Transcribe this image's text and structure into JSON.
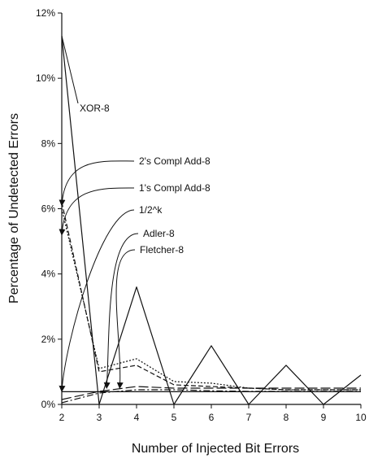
{
  "chart_data": {
    "type": "line",
    "title": "",
    "xlabel": "Number of Injected Bit Errors",
    "ylabel": "Percentage of Undetected Errors",
    "x": [
      2,
      3,
      4,
      5,
      6,
      7,
      8,
      9,
      10
    ],
    "xlim": [
      2,
      10
    ],
    "ylim": [
      0,
      12
    ],
    "y_ticks": [
      0,
      2,
      4,
      6,
      8,
      10,
      12
    ],
    "y_tick_labels": [
      "0%",
      "2%",
      "4%",
      "6%",
      "8%",
      "10%",
      "12%"
    ],
    "x_tick_labels": [
      "2",
      "3",
      "4",
      "5",
      "6",
      "7",
      "8",
      "9",
      "10"
    ],
    "grid": false,
    "legend": "none",
    "series": [
      {
        "name": "XOR-8",
        "style": "solid",
        "color": "#111111",
        "values": [
          11.3,
          0.0,
          3.6,
          0.0,
          1.8,
          0.0,
          1.2,
          0.0,
          0.9
        ]
      },
      {
        "name": "2's Compl Add-8",
        "style": "dashed",
        "color": "#111111",
        "values": [
          6.2,
          1.0,
          1.2,
          0.6,
          0.55,
          0.5,
          0.45,
          0.45,
          0.45
        ]
      },
      {
        "name": "1's Compl Add-8",
        "style": "dotted",
        "color": "#111111",
        "values": [
          6.0,
          1.1,
          1.4,
          0.7,
          0.65,
          0.5,
          0.45,
          0.45,
          0.45
        ]
      },
      {
        "name": "1/2^k",
        "style": "solid",
        "color": "#111111",
        "values": [
          0.39,
          0.39,
          0.39,
          0.39,
          0.39,
          0.39,
          0.39,
          0.39,
          0.39
        ]
      },
      {
        "name": "Adler-8",
        "style": "longdash",
        "color": "#111111",
        "values": [
          0.15,
          0.4,
          0.55,
          0.5,
          0.5,
          0.5,
          0.5,
          0.5,
          0.5
        ]
      },
      {
        "name": "Fletcher-8",
        "style": "dashdot",
        "color": "#111111",
        "values": [
          0.05,
          0.35,
          0.45,
          0.45,
          0.42,
          0.4,
          0.4,
          0.4,
          0.4
        ]
      }
    ],
    "annotations": [
      {
        "text": "XOR-8",
        "target_x": 2,
        "target_y": 11.3
      },
      {
        "text": "2's Compl Add-8",
        "target_x": 2,
        "target_y": 6.1
      },
      {
        "text": "1's Compl Add-8",
        "target_x": 2,
        "target_y": 5.2
      },
      {
        "text": "1/2^k",
        "target_x": 2,
        "target_y": 0.4
      },
      {
        "text": "Adler-8",
        "target_x": 3.2,
        "target_y": 0.5
      },
      {
        "text": "Fletcher-8",
        "target_x": 3.55,
        "target_y": 0.5
      }
    ]
  }
}
